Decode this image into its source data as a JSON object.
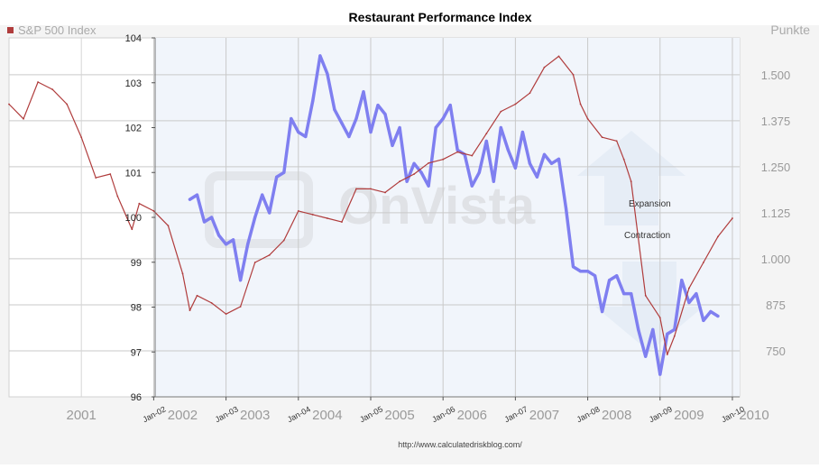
{
  "chart_data": {
    "type": "line",
    "title": "Restaurant Performance Index",
    "left_axis": {
      "label": "S&P 500 Index",
      "ticks": [
        96,
        97,
        98,
        99,
        100,
        101,
        102,
        103,
        104
      ],
      "ylim": [
        96,
        104
      ]
    },
    "right_axis": {
      "label": "Punkte",
      "ticks": [
        "750",
        "875",
        "1.000",
        "1.125",
        "1.250",
        "1.375",
        "1.500"
      ],
      "tick_values": [
        750,
        875,
        1000,
        1125,
        1250,
        1375,
        1500
      ],
      "ylim": [
        625,
        1600
      ]
    },
    "x_range": [
      2000.0,
      2010.1
    ],
    "x_ticks_rotated": [
      "Jan-02",
      "Jan-03",
      "Jan-04",
      "Jan-05",
      "Jan-06",
      "Jan-07",
      "Jan-08",
      "Jan-09",
      "Jan-10"
    ],
    "x_tick_values": [
      2002,
      2003,
      2004,
      2005,
      2006,
      2007,
      2008,
      2009,
      2010
    ],
    "year_labels": [
      "2001",
      "2002",
      "2003",
      "2004",
      "2005",
      "2006",
      "2007",
      "2008",
      "2009",
      "2010"
    ],
    "year_label_positions": [
      2001.0,
      2002.4,
      2003.4,
      2004.4,
      2005.4,
      2006.4,
      2007.4,
      2008.4,
      2009.4,
      2010.3
    ],
    "annotations": [
      "Expansion",
      "Contraction"
    ],
    "watermark": "OnVista",
    "source": "http://www.calculatedriskblog.com/",
    "colors": {
      "rpi": "#7f7ff0",
      "sp500": "#b03c3c"
    },
    "series": [
      {
        "name": "Restaurant Performance Index",
        "axis": "left",
        "x": [
          2002.5,
          2002.6,
          2002.7,
          2002.8,
          2002.9,
          2003.0,
          2003.1,
          2003.2,
          2003.3,
          2003.4,
          2003.5,
          2003.6,
          2003.7,
          2003.8,
          2003.9,
          2004.0,
          2004.1,
          2004.2,
          2004.3,
          2004.4,
          2004.5,
          2004.6,
          2004.7,
          2004.8,
          2004.9,
          2005.0,
          2005.1,
          2005.2,
          2005.3,
          2005.4,
          2005.5,
          2005.6,
          2005.7,
          2005.8,
          2005.9,
          2006.0,
          2006.1,
          2006.2,
          2006.3,
          2006.4,
          2006.5,
          2006.6,
          2006.7,
          2006.8,
          2006.9,
          2007.0,
          2007.1,
          2007.2,
          2007.3,
          2007.4,
          2007.5,
          2007.6,
          2007.7,
          2007.8,
          2007.9,
          2008.0,
          2008.1,
          2008.2,
          2008.3,
          2008.4,
          2008.5,
          2008.6,
          2008.7,
          2008.8,
          2008.9,
          2009.0,
          2009.1,
          2009.2,
          2009.3,
          2009.4,
          2009.5,
          2009.6,
          2009.7,
          2009.8
        ],
        "values": [
          100.4,
          100.5,
          99.9,
          100.0,
          99.6,
          99.4,
          99.5,
          98.6,
          99.4,
          100.0,
          100.5,
          100.1,
          100.9,
          101.0,
          102.2,
          101.9,
          101.8,
          102.6,
          103.6,
          103.2,
          102.4,
          102.1,
          101.8,
          102.2,
          102.8,
          101.9,
          102.5,
          102.3,
          101.6,
          102.0,
          100.8,
          101.2,
          101.0,
          100.7,
          102.0,
          102.2,
          102.5,
          101.5,
          101.4,
          100.7,
          101.0,
          101.7,
          100.8,
          102.0,
          101.5,
          101.1,
          101.9,
          101.2,
          100.9,
          101.4,
          101.2,
          101.3,
          100.2,
          98.9,
          98.8,
          98.8,
          98.7,
          97.9,
          98.6,
          98.7,
          98.3,
          98.3,
          97.5,
          96.9,
          97.5,
          96.5,
          97.4,
          97.5,
          98.6,
          98.1,
          98.3,
          97.7,
          97.9,
          97.8
        ]
      },
      {
        "name": "S&P 500 Index",
        "axis": "right",
        "x": [
          2000.0,
          2000.2,
          2000.4,
          2000.6,
          2000.8,
          2001.0,
          2001.2,
          2001.4,
          2001.5,
          2001.7,
          2001.8,
          2002.0,
          2002.2,
          2002.4,
          2002.5,
          2002.6,
          2002.8,
          2003.0,
          2003.2,
          2003.4,
          2003.6,
          2003.8,
          2004.0,
          2004.2,
          2004.4,
          2004.6,
          2004.8,
          2005.0,
          2005.2,
          2005.4,
          2005.6,
          2005.8,
          2006.0,
          2006.2,
          2006.4,
          2006.6,
          2006.8,
          2007.0,
          2007.2,
          2007.4,
          2007.6,
          2007.8,
          2007.9,
          2008.0,
          2008.2,
          2008.4,
          2008.5,
          2008.6,
          2008.8,
          2009.0,
          2009.1,
          2009.2,
          2009.4,
          2009.6,
          2009.8,
          2010.0
        ],
        "values": [
          1420,
          1380,
          1480,
          1460,
          1420,
          1330,
          1220,
          1230,
          1170,
          1080,
          1150,
          1130,
          1090,
          960,
          860,
          900,
          880,
          850,
          870,
          990,
          1010,
          1050,
          1130,
          1120,
          1110,
          1100,
          1190,
          1190,
          1180,
          1210,
          1230,
          1260,
          1270,
          1290,
          1280,
          1340,
          1400,
          1420,
          1450,
          1520,
          1550,
          1500,
          1420,
          1380,
          1330,
          1320,
          1270,
          1210,
          900,
          840,
          740,
          790,
          920,
          990,
          1060,
          1110
        ]
      }
    ]
  }
}
